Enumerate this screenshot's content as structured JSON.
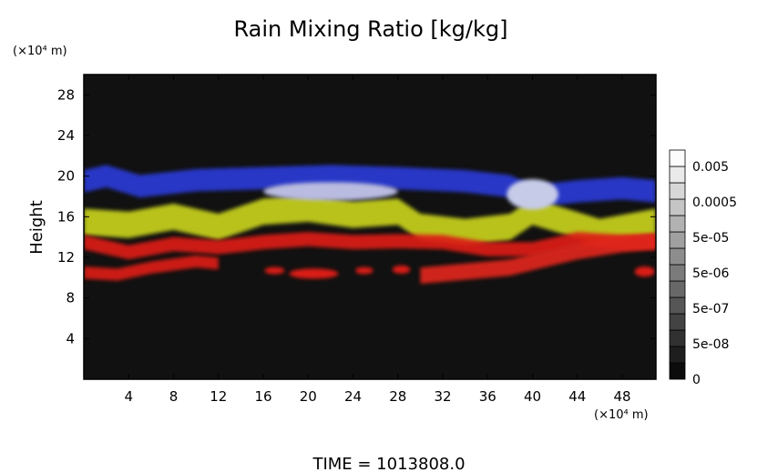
{
  "chart_data": {
    "type": "heatmap",
    "title": "Rain Mixing Ratio [kg/kg]",
    "ylabel": "Height",
    "y_unit": "(×10⁴ m)",
    "x_unit": "(×10⁴ m)",
    "xlim": [
      0,
      51
    ],
    "ylim": [
      0,
      30
    ],
    "xticks": [
      4,
      8,
      12,
      16,
      20,
      24,
      28,
      32,
      36,
      40,
      44,
      48
    ],
    "yticks": [
      4,
      8,
      12,
      16,
      20,
      24,
      28
    ],
    "colorbar": {
      "labels": [
        "0.005",
        "0.0005",
        "5e-05",
        "5e-06",
        "5e-07",
        "5e-08",
        "0"
      ],
      "levels": 14
    },
    "footer": "TIME = 1013808.0",
    "background_color": "#111111",
    "bands": [
      {
        "name": "blue",
        "color": "#2a3bd6",
        "points": [
          [
            0,
            19.5
          ],
          [
            2,
            20
          ],
          [
            5,
            19
          ],
          [
            10,
            19.6
          ],
          [
            16,
            19.8
          ],
          [
            22,
            20
          ],
          [
            28,
            19.8
          ],
          [
            34,
            19.5
          ],
          [
            38,
            19
          ],
          [
            40,
            18
          ],
          [
            44,
            18.5
          ],
          [
            48,
            18.8
          ],
          [
            51,
            18.5
          ]
        ],
        "thickness": 2.2
      },
      {
        "name": "yellow-green",
        "color": "#c8d21e",
        "points": [
          [
            0,
            15.5
          ],
          [
            4,
            15.2
          ],
          [
            8,
            16
          ],
          [
            12,
            15
          ],
          [
            16,
            16.5
          ],
          [
            20,
            16.8
          ],
          [
            24,
            16.2
          ],
          [
            28,
            16.5
          ],
          [
            30,
            15
          ],
          [
            34,
            14.5
          ],
          [
            38,
            15
          ],
          [
            40,
            16.5
          ],
          [
            43,
            15.5
          ],
          [
            46,
            14.5
          ],
          [
            51,
            15.5
          ]
        ],
        "thickness": 2.6
      },
      {
        "name": "red-upper",
        "color": "#dc1e14",
        "points": [
          [
            0,
            13.5
          ],
          [
            4,
            12.5
          ],
          [
            8,
            13.3
          ],
          [
            12,
            13
          ],
          [
            16,
            13.5
          ],
          [
            20,
            13.8
          ],
          [
            24,
            13.5
          ],
          [
            28,
            13.6
          ],
          [
            32,
            13.5
          ],
          [
            36,
            12.8
          ],
          [
            40,
            12.8
          ],
          [
            44,
            13.8
          ],
          [
            48,
            13.5
          ],
          [
            51,
            13.5
          ]
        ],
        "thickness": 1.4
      },
      {
        "name": "red-lower",
        "color": "#dc1e14",
        "points": [
          [
            0,
            10.5
          ],
          [
            3,
            10.3
          ],
          [
            6,
            11
          ],
          [
            10,
            11.6
          ],
          [
            12,
            11.4
          ]
        ],
        "thickness": 1.2
      },
      {
        "name": "red-slant",
        "color": "#e0261a",
        "points": [
          [
            30,
            10.2
          ],
          [
            34,
            10.6
          ],
          [
            38,
            11
          ],
          [
            41,
            11.8
          ],
          [
            44,
            12.6
          ],
          [
            48,
            13.3
          ],
          [
            51,
            13.6
          ]
        ],
        "thickness": 1.6
      }
    ],
    "blobs": [
      {
        "color": "#c6cbe8",
        "x": 40,
        "y": 18.2,
        "rx": 2.3,
        "ry": 1.5
      },
      {
        "color": "#b9bbe0",
        "x": 22,
        "y": 18.5,
        "rx": 6.0,
        "ry": 0.9
      },
      {
        "color": "#dc1e14",
        "x": 20.5,
        "y": 10.4,
        "rx": 2.2,
        "ry": 0.5
      },
      {
        "color": "#dc1e14",
        "x": 17,
        "y": 10.7,
        "rx": 0.9,
        "ry": 0.35
      },
      {
        "color": "#dc1e14",
        "x": 25,
        "y": 10.7,
        "rx": 0.8,
        "ry": 0.35
      },
      {
        "color": "#dc1e14",
        "x": 28.3,
        "y": 10.8,
        "rx": 0.8,
        "ry": 0.4
      },
      {
        "color": "#dc1e14",
        "x": 50,
        "y": 10.6,
        "rx": 0.9,
        "ry": 0.5
      }
    ]
  }
}
